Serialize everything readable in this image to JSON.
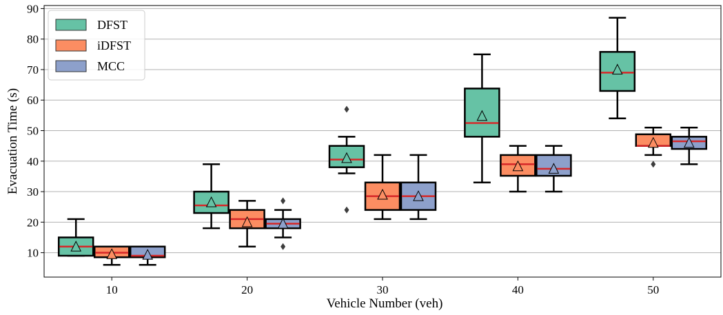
{
  "chart_data": {
    "type": "box",
    "xlabel": "Vehicle Number (veh)",
    "ylabel": "Evacuation Time (s)",
    "categories": [
      "10",
      "20",
      "30",
      "40",
      "50"
    ],
    "ylim": [
      2,
      91
    ],
    "yticks": [
      10,
      20,
      30,
      40,
      50,
      60,
      70,
      80,
      90
    ],
    "grid": "horizontal",
    "legend_position": "top-left",
    "series": [
      {
        "name": "DFST",
        "color": "#66c2a5",
        "boxes": [
          {
            "whisker_low": 9,
            "q1": 9,
            "median": 12,
            "q3": 15,
            "whisker_high": 21,
            "mean": 12,
            "outliers": []
          },
          {
            "whisker_low": 18,
            "q1": 23,
            "median": 25.5,
            "q3": 30,
            "whisker_high": 39,
            "mean": 26.5,
            "outliers": []
          },
          {
            "whisker_low": 36,
            "q1": 38,
            "median": 40.5,
            "q3": 45,
            "whisker_high": 48,
            "mean": 41,
            "outliers": [
              24,
              57
            ]
          },
          {
            "whisker_low": 33,
            "q1": 48,
            "median": 52.5,
            "q3": 63.8,
            "whisker_high": 75,
            "mean": 54.8,
            "outliers": []
          },
          {
            "whisker_low": 54,
            "q1": 63,
            "median": 69,
            "q3": 75.8,
            "whisker_high": 87,
            "mean": 70,
            "outliers": []
          }
        ]
      },
      {
        "name": "iDFST",
        "color": "#fc8d62",
        "boxes": [
          {
            "whisker_low": 6,
            "q1": 8.5,
            "median": 10,
            "q3": 12,
            "whisker_high": 12,
            "mean": 9.5,
            "outliers": []
          },
          {
            "whisker_low": 12,
            "q1": 18,
            "median": 21,
            "q3": 24,
            "whisker_high": 27,
            "mean": 20,
            "outliers": []
          },
          {
            "whisker_low": 21,
            "q1": 24,
            "median": 28.5,
            "q3": 33,
            "whisker_high": 42,
            "mean": 29,
            "outliers": []
          },
          {
            "whisker_low": 30,
            "q1": 35.2,
            "median": 39,
            "q3": 42,
            "whisker_high": 45,
            "mean": 38.3,
            "outliers": []
          },
          {
            "whisker_low": 42,
            "q1": 45,
            "median": 45,
            "q3": 48.8,
            "whisker_high": 51,
            "mean": 46,
            "outliers": [
              39
            ]
          }
        ]
      },
      {
        "name": "MCC",
        "color": "#8da0cb",
        "boxes": [
          {
            "whisker_low": 6,
            "q1": 8.5,
            "median": 9,
            "q3": 12,
            "whisker_high": 12,
            "mean": 9.3,
            "outliers": []
          },
          {
            "whisker_low": 15,
            "q1": 18,
            "median": 19.5,
            "q3": 21,
            "whisker_high": 24,
            "mean": 19.5,
            "outliers": [
              12,
              27
            ]
          },
          {
            "whisker_low": 21,
            "q1": 24,
            "median": 28.5,
            "q3": 33,
            "whisker_high": 42,
            "mean": 28.5,
            "outliers": []
          },
          {
            "whisker_low": 30,
            "q1": 35.2,
            "median": 37.5,
            "q3": 42,
            "whisker_high": 45,
            "mean": 37.5,
            "outliers": []
          },
          {
            "whisker_low": 39,
            "q1": 44,
            "median": 46.5,
            "q3": 48,
            "whisker_high": 51,
            "mean": 46,
            "outliers": []
          }
        ]
      }
    ],
    "median_color": "#d62728",
    "mean_marker": "triangle"
  }
}
